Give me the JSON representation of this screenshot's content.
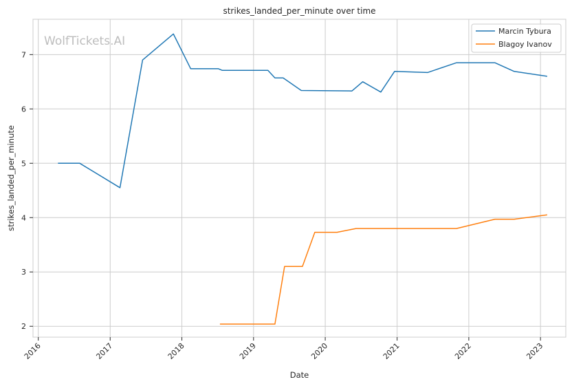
{
  "chart_data": {
    "type": "line",
    "title": "strikes_landed_per_minute over time",
    "xlabel": "Date",
    "ylabel": "strikes_landed_per_minute",
    "watermark": "WolfTickets.AI",
    "x_ticks": [
      "2016",
      "2017",
      "2018",
      "2019",
      "2020",
      "2021",
      "2022",
      "2023"
    ],
    "y_ticks": [
      "2",
      "3",
      "4",
      "5",
      "6",
      "7"
    ],
    "xlim": [
      "2015-12-05",
      "2023-05-10"
    ],
    "ylim": [
      1.8,
      7.65
    ],
    "grid": true,
    "legend_position": "top-right",
    "series": [
      {
        "name": "Marcin Tybura",
        "color": "#1f77b4",
        "points": [
          [
            "2016-04-10",
            5.0
          ],
          [
            "2016-07-30",
            5.0
          ],
          [
            "2017-02-20",
            4.55
          ],
          [
            "2017-06-15",
            6.9
          ],
          [
            "2017-11-19",
            7.38
          ],
          [
            "2018-02-15",
            6.74
          ],
          [
            "2018-07-06",
            6.74
          ],
          [
            "2018-07-25",
            6.71
          ],
          [
            "2019-03-15",
            6.71
          ],
          [
            "2019-04-20",
            6.57
          ],
          [
            "2019-06-01",
            6.57
          ],
          [
            "2019-09-01",
            6.34
          ],
          [
            "2020-05-16",
            6.33
          ],
          [
            "2020-07-10",
            6.5
          ],
          [
            "2020-10-10",
            6.31
          ],
          [
            "2020-12-19",
            6.69
          ],
          [
            "2021-06-05",
            6.67
          ],
          [
            "2021-10-30",
            6.85
          ],
          [
            "2022-05-14",
            6.85
          ],
          [
            "2022-08-20",
            6.69
          ],
          [
            "2023-02-04",
            6.6
          ]
        ]
      },
      {
        "name": "Blagoy Ivanov",
        "color": "#ff7f0e",
        "points": [
          [
            "2018-07-14",
            2.04
          ],
          [
            "2019-04-20",
            2.04
          ],
          [
            "2019-06-08",
            3.1
          ],
          [
            "2019-09-07",
            3.1
          ],
          [
            "2019-11-09",
            3.73
          ],
          [
            "2020-03-01",
            3.73
          ],
          [
            "2020-06-06",
            3.8
          ],
          [
            "2021-10-30",
            3.8
          ],
          [
            "2022-05-14",
            3.97
          ],
          [
            "2022-08-20",
            3.97
          ],
          [
            "2023-02-04",
            4.05
          ]
        ]
      }
    ]
  }
}
